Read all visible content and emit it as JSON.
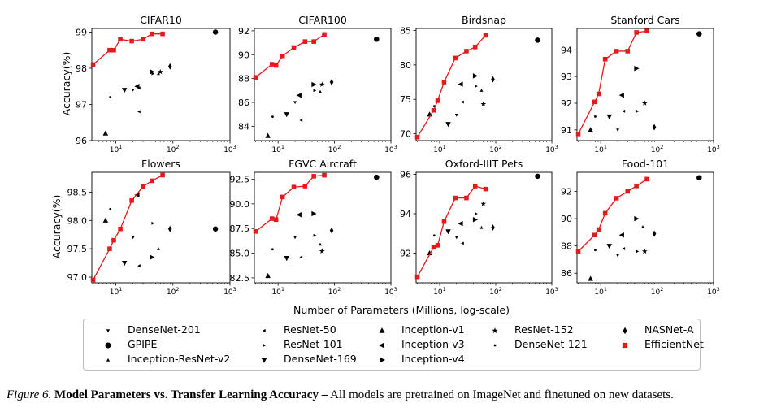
{
  "figure": {
    "xlabel": "Number of Parameters (Millions, log-scale)",
    "ylabel": "Accuracy(%)",
    "caption_label": "Figure 6.",
    "caption_title": "Model Parameters vs. Transfer Learning Accuracy –",
    "caption_text": "All models are pretrained on ImageNet and finetuned on new datasets."
  },
  "legend": [
    {
      "name": "DenseNet-201",
      "marker": "tri_down"
    },
    {
      "name": "GPIPE",
      "marker": "circle"
    },
    {
      "name": "Inception-ResNet-v2",
      "marker": "tri_up"
    },
    {
      "name": "ResNet-50",
      "marker": "tri_left"
    },
    {
      "name": "ResNet-101",
      "marker": "tri_right"
    },
    {
      "name": "DenseNet-169",
      "marker": "triangle_down"
    },
    {
      "name": "Inception-v1",
      "marker": "triangle_up"
    },
    {
      "name": "Inception-v3",
      "marker": "triangle_left"
    },
    {
      "name": "Inception-v4",
      "marker": "triangle_right"
    },
    {
      "name": "ResNet-152",
      "marker": "star"
    },
    {
      "name": "DenseNet-121",
      "marker": "point"
    },
    {
      "name": "NASNet-A",
      "marker": "diamond"
    },
    {
      "name": "EfficientNet",
      "marker": "square"
    }
  ],
  "colors": {
    "efficientnet": "#e41a1c",
    "others": "#000000"
  },
  "chart_data": [
    {
      "type": "scatter",
      "title": "CIFAR10",
      "xscale": "log",
      "xlim": [
        3.8,
        1000
      ],
      "ylim": [
        96,
        99.1
      ],
      "yticks": [
        "96",
        "97",
        "98",
        "99"
      ],
      "xticks": [
        "10^1",
        "10^2",
        "10^3"
      ],
      "efficientnet": {
        "x": [
          4,
          7.8,
          9.2,
          12,
          19,
          30,
          43,
          66
        ],
        "y": [
          98.1,
          98.5,
          98.5,
          98.8,
          98.75,
          98.8,
          98.95,
          98.95
        ]
      },
      "others": [
        {
          "model": "GPIPE",
          "x": 556,
          "y": 99.0
        },
        {
          "model": "NASNet-A",
          "x": 89,
          "y": 98.05
        },
        {
          "model": "Inception-v3",
          "x": 23.8,
          "y": 97.5
        },
        {
          "model": "Inception-v4",
          "x": 42.7,
          "y": 97.9
        },
        {
          "model": "ResNet-152",
          "x": 60.2,
          "y": 97.9
        },
        {
          "model": "ResNet-101",
          "x": 44.5,
          "y": 97.85
        },
        {
          "model": "Inception-ResNet-v2",
          "x": 55.8,
          "y": 97.85
        },
        {
          "model": "DenseNet-169",
          "x": 14.2,
          "y": 97.4
        },
        {
          "model": "ResNet-50",
          "x": 25.6,
          "y": 97.45
        },
        {
          "model": "DenseNet-201",
          "x": 20,
          "y": 97.4
        },
        {
          "model": "DenseNet-121",
          "x": 8,
          "y": 97.2
        },
        {
          "model": "ResNet-50b",
          "x": 25.6,
          "y": 96.8
        },
        {
          "model": "Inception-v1",
          "x": 6.6,
          "y": 96.2
        }
      ]
    },
    {
      "type": "scatter",
      "title": "CIFAR100",
      "xscale": "log",
      "xlim": [
        3.8,
        1000
      ],
      "ylim": [
        82.8,
        92.2
      ],
      "yticks": [
        "84",
        "86",
        "88",
        "90",
        "92"
      ],
      "xticks": [
        "10^1",
        "10^2",
        "10^3"
      ],
      "efficientnet": {
        "x": [
          4,
          7.8,
          9.2,
          12,
          19,
          30,
          43,
          66
        ],
        "y": [
          88.1,
          89.2,
          89.1,
          89.9,
          90.6,
          91.1,
          91.1,
          91.7
        ]
      },
      "others": [
        {
          "model": "GPIPE",
          "x": 556,
          "y": 91.3
        },
        {
          "model": "NASNet-A",
          "x": 89,
          "y": 87.7
        },
        {
          "model": "Inception-v4",
          "x": 42.7,
          "y": 87.5
        },
        {
          "model": "ResNet-152",
          "x": 60.2,
          "y": 87.5
        },
        {
          "model": "ResNet-101",
          "x": 44.5,
          "y": 87.0
        },
        {
          "model": "Inception-ResNet-v2",
          "x": 55.8,
          "y": 86.9
        },
        {
          "model": "Inception-v3",
          "x": 23.8,
          "y": 86.6
        },
        {
          "model": "ResNet-50",
          "x": 25.6,
          "y": 84.5
        },
        {
          "model": "DenseNet-201",
          "x": 20,
          "y": 86.0
        },
        {
          "model": "DenseNet-169",
          "x": 14.2,
          "y": 85.0
        },
        {
          "model": "DenseNet-121",
          "x": 8,
          "y": 84.8
        },
        {
          "model": "Inception-v1",
          "x": 6.6,
          "y": 83.2
        }
      ]
    },
    {
      "type": "scatter",
      "title": "Birdsnap",
      "xscale": "log",
      "xlim": [
        3.8,
        1000
      ],
      "ylim": [
        69,
        85.3
      ],
      "yticks": [
        "70",
        "75",
        "80",
        "85"
      ],
      "xticks": [
        "10^1",
        "10^2",
        "10^3"
      ],
      "efficientnet": {
        "x": [
          4,
          7.8,
          9.2,
          12,
          19,
          30,
          43,
          66
        ],
        "y": [
          69.5,
          73.4,
          74.8,
          77.5,
          81.0,
          82.0,
          82.6,
          84.3
        ]
      },
      "others": [
        {
          "model": "GPIPE",
          "x": 556,
          "y": 83.6
        },
        {
          "model": "NASNet-A",
          "x": 89,
          "y": 77.9
        },
        {
          "model": "Inception-v4",
          "x": 42.7,
          "y": 78.4
        },
        {
          "model": "Inception-v3",
          "x": 23.8,
          "y": 77.2
        },
        {
          "model": "ResNet-101",
          "x": 44.5,
          "y": 76.9
        },
        {
          "model": "Inception-ResNet-v2",
          "x": 55.8,
          "y": 76.3
        },
        {
          "model": "ResNet-152",
          "x": 60.2,
          "y": 74.3
        },
        {
          "model": "ResNet-50",
          "x": 25.6,
          "y": 74.6
        },
        {
          "model": "DenseNet-201",
          "x": 20,
          "y": 72.7
        },
        {
          "model": "DenseNet-169",
          "x": 14.2,
          "y": 71.4
        },
        {
          "model": "DenseNet-121",
          "x": 8,
          "y": 74.0
        },
        {
          "model": "Inception-v1",
          "x": 6.6,
          "y": 72.8
        }
      ]
    },
    {
      "type": "scatter",
      "title": "Stanford Cars",
      "xscale": "log",
      "xlim": [
        3.8,
        1000
      ],
      "ylim": [
        90.6,
        94.8
      ],
      "yticks": [
        "91",
        "92",
        "93",
        "94"
      ],
      "xticks": [
        "10^1",
        "10^2",
        "10^3"
      ],
      "efficientnet": {
        "x": [
          4,
          7.8,
          9.2,
          12,
          19,
          30,
          43,
          66
        ],
        "y": [
          90.85,
          92.05,
          92.35,
          93.65,
          93.95,
          93.95,
          94.65,
          94.7
        ]
      },
      "others": [
        {
          "model": "GPIPE",
          "x": 556,
          "y": 94.6
        },
        {
          "model": "Inception-v4",
          "x": 42.7,
          "y": 93.3
        },
        {
          "model": "Inception-v3",
          "x": 23.8,
          "y": 92.3
        },
        {
          "model": "ResNet-152",
          "x": 60.2,
          "y": 92.0
        },
        {
          "model": "ResNet-101",
          "x": 44.5,
          "y": 91.7
        },
        {
          "model": "DenseNet-169",
          "x": 14.2,
          "y": 91.5
        },
        {
          "model": "ResNet-50",
          "x": 25.6,
          "y": 91.7
        },
        {
          "model": "DenseNet-121",
          "x": 8,
          "y": 91.5
        },
        {
          "model": "DenseNet-201",
          "x": 20,
          "y": 91.0
        },
        {
          "model": "Inception-v1",
          "x": 6.6,
          "y": 91.0
        },
        {
          "model": "NASNet-A",
          "x": 89,
          "y": 91.1
        }
      ]
    },
    {
      "type": "scatter",
      "title": "Flowers",
      "xscale": "log",
      "xlim": [
        3.8,
        1000
      ],
      "ylim": [
        96.9,
        98.85
      ],
      "yticks": [
        "97.0",
        "97.5",
        "98.0",
        "98.5"
      ],
      "xticks": [
        "10^1",
        "10^2",
        "10^3"
      ],
      "efficientnet": {
        "x": [
          4,
          7.8,
          9.2,
          12,
          19,
          30,
          43,
          66
        ],
        "y": [
          96.95,
          97.5,
          97.65,
          97.85,
          98.35,
          98.6,
          98.7,
          98.8
        ]
      },
      "others": [
        {
          "model": "Inception-v3",
          "x": 23.8,
          "y": 98.45
        },
        {
          "model": "DenseNet-121",
          "x": 8,
          "y": 98.2
        },
        {
          "model": "Inception-v1",
          "x": 6.6,
          "y": 98.0
        },
        {
          "model": "ResNet-101",
          "x": 44.5,
          "y": 97.95
        },
        {
          "model": "GPIPE",
          "x": 556,
          "y": 97.85
        },
        {
          "model": "NASNet-A",
          "x": 89,
          "y": 97.85
        },
        {
          "model": "DenseNet-201",
          "x": 20,
          "y": 97.7
        },
        {
          "model": "Inception-ResNet-v2",
          "x": 55.8,
          "y": 97.5
        },
        {
          "model": "Inception-v4",
          "x": 42.7,
          "y": 97.35
        },
        {
          "model": "DenseNet-169",
          "x": 14.2,
          "y": 97.25
        },
        {
          "model": "ResNet-50",
          "x": 25.6,
          "y": 97.2
        }
      ]
    },
    {
      "type": "scatter",
      "title": "FGVC Aircraft",
      "xscale": "log",
      "xlim": [
        3.8,
        1000
      ],
      "ylim": [
        82,
        93.2
      ],
      "yticks": [
        "82.5",
        "85.0",
        "87.5",
        "90.0",
        "92.5"
      ],
      "xticks": [
        "10^1",
        "10^2",
        "10^3"
      ],
      "efficientnet": {
        "x": [
          4,
          7.8,
          9.2,
          12,
          19,
          30,
          43,
          66
        ],
        "y": [
          87.2,
          88.5,
          88.4,
          90.7,
          91.7,
          91.8,
          92.8,
          92.9
        ]
      },
      "others": [
        {
          "model": "GPIPE",
          "x": 556,
          "y": 92.7
        },
        {
          "model": "Inception-v3",
          "x": 23.8,
          "y": 88.9
        },
        {
          "model": "Inception-v4",
          "x": 42.7,
          "y": 89.0
        },
        {
          "model": "NASNet-A",
          "x": 89,
          "y": 87.3
        },
        {
          "model": "ResNet-101",
          "x": 44.5,
          "y": 86.8
        },
        {
          "model": "Inception-ResNet-v2",
          "x": 55.8,
          "y": 85.9
        },
        {
          "model": "ResNet-152",
          "x": 60.2,
          "y": 85.2
        },
        {
          "model": "DenseNet-201",
          "x": 20,
          "y": 86.6
        },
        {
          "model": "DenseNet-121",
          "x": 8,
          "y": 85.4
        },
        {
          "model": "DenseNet-169",
          "x": 14.2,
          "y": 84.5
        },
        {
          "model": "ResNet-50",
          "x": 25.6,
          "y": 84.6
        },
        {
          "model": "Inception-v1",
          "x": 6.6,
          "y": 82.7
        }
      ]
    },
    {
      "type": "scatter",
      "title": "Oxford-IIIT Pets",
      "xscale": "log",
      "xlim": [
        3.8,
        1000
      ],
      "ylim": [
        90.5,
        96.1
      ],
      "yticks": [
        "92",
        "94",
        "96"
      ],
      "xticks": [
        "10^1",
        "10^2",
        "10^3"
      ],
      "efficientnet": {
        "x": [
          4,
          7.8,
          9.2,
          12,
          19,
          30,
          43,
          66
        ],
        "y": [
          90.8,
          92.3,
          92.4,
          93.6,
          94.8,
          94.8,
          95.4,
          95.25
        ]
      },
      "others": [
        {
          "model": "GPIPE",
          "x": 556,
          "y": 95.9
        },
        {
          "model": "ResNet-152",
          "x": 60.2,
          "y": 94.5
        },
        {
          "model": "DenseNet-121",
          "x": 8,
          "y": 92.9
        },
        {
          "model": "Inception-v4",
          "x": 42.7,
          "y": 93.7
        },
        {
          "model": "Inception-v3",
          "x": 23.8,
          "y": 93.5
        },
        {
          "model": "ResNet-101",
          "x": 44.5,
          "y": 94.0
        },
        {
          "model": "NASNet-A",
          "x": 89,
          "y": 93.3
        },
        {
          "model": "DenseNet-169",
          "x": 14.2,
          "y": 93.1
        },
        {
          "model": "ResNet-50",
          "x": 25.6,
          "y": 92.5
        },
        {
          "model": "DenseNet-201",
          "x": 20,
          "y": 92.8
        },
        {
          "model": "Inception-ResNet-v2",
          "x": 55.8,
          "y": 93.3
        },
        {
          "model": "Inception-v1",
          "x": 6.6,
          "y": 92.0
        }
      ]
    },
    {
      "type": "scatter",
      "title": "Food-101",
      "xscale": "log",
      "xlim": [
        3.8,
        1000
      ],
      "ylim": [
        85.3,
        93.4
      ],
      "yticks": [
        "86",
        "88",
        "90",
        "92"
      ],
      "xticks": [
        "10^1",
        "10^2",
        "10^3"
      ],
      "efficientnet": {
        "x": [
          4,
          7.8,
          9.2,
          12,
          19,
          30,
          43,
          66
        ],
        "y": [
          87.6,
          88.8,
          89.2,
          90.4,
          91.5,
          92.0,
          92.4,
          92.9
        ]
      },
      "others": [
        {
          "model": "GPIPE",
          "x": 556,
          "y": 93.0
        },
        {
          "model": "Inception-v4",
          "x": 42.7,
          "y": 90.0
        },
        {
          "model": "Inception-ResNet-v2",
          "x": 55.8,
          "y": 89.4
        },
        {
          "model": "NASNet-A",
          "x": 89,
          "y": 88.9
        },
        {
          "model": "Inception-v3",
          "x": 23.8,
          "y": 88.8
        },
        {
          "model": "DenseNet-169",
          "x": 14.2,
          "y": 88.0
        },
        {
          "model": "ResNet-50",
          "x": 25.6,
          "y": 87.8
        },
        {
          "model": "DenseNet-121",
          "x": 8,
          "y": 87.7
        },
        {
          "model": "ResNet-101",
          "x": 44.5,
          "y": 87.6
        },
        {
          "model": "ResNet-152",
          "x": 60.2,
          "y": 87.6
        },
        {
          "model": "DenseNet-201",
          "x": 20,
          "y": 87.3
        },
        {
          "model": "Inception-v1",
          "x": 6.6,
          "y": 85.6
        }
      ]
    }
  ]
}
